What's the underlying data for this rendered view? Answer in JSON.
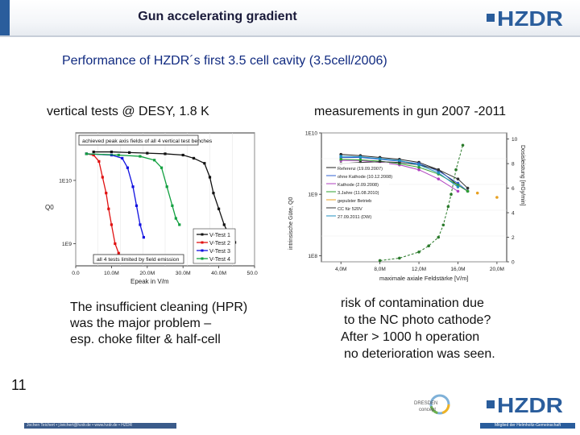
{
  "header": {
    "title": "Gun accelerating gradient",
    "logo_text": "HZDR"
  },
  "subtitle": "Performance of HZDR´s first 3.5 cell cavity  (3.5cell/2006)",
  "left": {
    "label": "vertical tests @ DESY, 1.8 K",
    "text": [
      "The insufficient cleaning (HPR)",
      "was the major problem –",
      "esp. choke filter & half-cell"
    ]
  },
  "right": {
    "label": "measurements in gun  2007 -2011",
    "text": [
      "risk of contamination due",
      "to the NC photo cathode?",
      "After > 1000 h operation",
      "no deterioration was seen."
    ]
  },
  "chart_data": [
    {
      "type": "line",
      "title": "achieved peak axis fields of all 4 vertical test benches",
      "annotation": "all 4 tests limited by field emission",
      "xlabel": "Epeak in V/m",
      "ylabel": "Q0",
      "x_ticks": [
        "0.0",
        "10.0M",
        "20.0M",
        "30.0M",
        "40.0M",
        "50.0M"
      ],
      "y_ticks": [
        "1E10",
        "1E9"
      ],
      "xlim": [
        0,
        50
      ],
      "series": [
        {
          "name": "V-Test 1",
          "color": "#111111",
          "x": [
            5,
            10,
            15,
            20,
            25,
            30,
            33,
            36,
            37.5,
            38.5,
            40,
            41.5,
            43,
            44.5
          ],
          "y": [
            10.45,
            10.45,
            10.44,
            10.43,
            10.42,
            10.4,
            10.35,
            10.27,
            10.05,
            9.8,
            9.55,
            9.3,
            9.12,
            9.02
          ]
        },
        {
          "name": "V-Test 2",
          "color": "#e01010",
          "x": [
            3,
            5,
            6.5,
            7.5,
            8.5,
            9.2,
            10,
            11,
            12
          ],
          "y": [
            10.42,
            10.4,
            10.3,
            10.05,
            9.8,
            9.55,
            9.3,
            9.0,
            8.85
          ]
        },
        {
          "name": "V-Test 3",
          "color": "#1010e0",
          "x": [
            3,
            10,
            13,
            14.5,
            16,
            17,
            18,
            19
          ],
          "y": [
            10.42,
            10.4,
            10.35,
            10.2,
            9.9,
            9.6,
            9.3,
            9.1
          ]
        },
        {
          "name": "V-Test 4",
          "color": "#12a040",
          "x": [
            3,
            12,
            18,
            22,
            24,
            25.5,
            27,
            28,
            29
          ],
          "y": [
            10.42,
            10.4,
            10.38,
            10.32,
            10.2,
            9.9,
            9.6,
            9.4,
            9.3
          ]
        }
      ]
    },
    {
      "type": "line",
      "xlabel": "maximale axiale Feldstärke [V/m]",
      "ylabel": "intrinsische Güte, Q0",
      "y2label": "Dosisleistung [mGy/min]",
      "x_ticks": [
        "4,0M",
        "8,0M",
        "12,0M",
        "16,0M",
        "20,0M"
      ],
      "y_ticks": [
        "1E10",
        "1E9",
        "1E8"
      ],
      "y2_ticks": [
        "0",
        "2",
        "4",
        "6",
        "8",
        "10"
      ],
      "xlim": [
        2,
        21
      ],
      "series": [
        {
          "name": "Referenz (19.09.2007)",
          "color": "#222222",
          "x": [
            4,
            6,
            8,
            10,
            12,
            14,
            16,
            17
          ],
          "y": [
            9.65,
            9.63,
            9.6,
            9.57,
            9.52,
            9.4,
            9.15,
            9.05
          ]
        },
        {
          "name": "ohne Kathode (10.12.2008)",
          "color": "#3060d0",
          "x": [
            4,
            6,
            8,
            10,
            12,
            14,
            16,
            17
          ],
          "y": [
            9.6,
            9.6,
            9.57,
            9.54,
            9.5,
            9.38,
            9.18,
            9.05
          ]
        },
        {
          "name": "Kathode (2.09.2008)",
          "color": "#b040c0",
          "x": [
            4,
            6,
            8,
            10,
            12,
            14,
            16
          ],
          "y": [
            9.55,
            9.55,
            9.52,
            9.48,
            9.4,
            9.25,
            9.05
          ]
        },
        {
          "name": "3.Jahre (11.08.2010)",
          "color": "#30a030",
          "x": [
            4,
            6,
            8,
            10,
            12,
            14,
            16,
            17
          ],
          "y": [
            9.57,
            9.56,
            9.54,
            9.5,
            9.44,
            9.33,
            9.15,
            9.05
          ]
        },
        {
          "name": "gepulster Betrieb",
          "color": "#e8a020",
          "x": [
            18,
            20
          ],
          "y": [
            9.02,
            8.95
          ]
        },
        {
          "name": "CC für 520V",
          "color": "#333333",
          "x": [
            4,
            6,
            8,
            10,
            12,
            14,
            16,
            17
          ],
          "y": [
            9.5,
            9.52,
            9.53,
            9.52,
            9.48,
            9.4,
            9.25,
            9.1
          ]
        },
        {
          "name": "27.09.2011 (DW)",
          "color": "#2090c0",
          "x": [
            4,
            6,
            8,
            10,
            12,
            14,
            16
          ],
          "y": [
            9.62,
            9.61,
            9.58,
            9.55,
            9.48,
            9.35,
            9.12
          ]
        },
        {
          "name": "Dosisleistung",
          "color": "#2a7a2a",
          "axis": "right",
          "x": [
            8,
            10,
            12,
            13,
            14,
            14.5,
            15,
            15.3,
            15.8,
            16.5
          ],
          "y": [
            0.1,
            0.3,
            0.8,
            1.3,
            2.0,
            3.0,
            4.5,
            5.5,
            7.5,
            9.5
          ]
        }
      ]
    }
  ],
  "footer": {
    "page": "11",
    "left_text": "Jochen Teichert • j.teichert@hzdr.de • www.hzdr.de • HZDR",
    "right_text": "Mitglied der Helmholtz-Gemeinschaft",
    "dd_line1": "DRESDEN",
    "dd_line2": "concept"
  }
}
